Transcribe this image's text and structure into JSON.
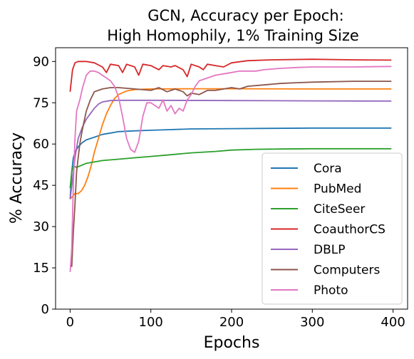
{
  "chart_data": {
    "type": "line",
    "title_line1": "GCN, Accuracy per Epoch:",
    "title_line2": "High Homophily, 1% Training Size",
    "xlabel": "Epochs",
    "ylabel": "% Accuracy",
    "xlim": [
      -18,
      418
    ],
    "ylim": [
      0,
      95
    ],
    "xticks": [
      0,
      100,
      200,
      300,
      400
    ],
    "yticks": [
      0,
      15,
      30,
      45,
      60,
      75,
      90
    ],
    "grid": false,
    "legend_position": "lower-right",
    "series": [
      {
        "name": "Cora",
        "color": "#1f77b4",
        "points": [
          [
            0,
            40
          ],
          [
            2,
            50
          ],
          [
            4,
            55
          ],
          [
            6,
            57
          ],
          [
            10,
            59
          ],
          [
            15,
            60.5
          ],
          [
            20,
            61.5
          ],
          [
            30,
            62.5
          ],
          [
            40,
            63.5
          ],
          [
            50,
            64
          ],
          [
            60,
            64.5
          ],
          [
            80,
            64.8
          ],
          [
            100,
            65
          ],
          [
            120,
            65.2
          ],
          [
            150,
            65.5
          ],
          [
            200,
            65.6
          ],
          [
            250,
            65.7
          ],
          [
            300,
            65.8
          ],
          [
            350,
            65.8
          ],
          [
            398,
            65.8
          ]
        ]
      },
      {
        "name": "PubMed",
        "color": "#ff7f0e",
        "points": [
          [
            0,
            40
          ],
          [
            3,
            41
          ],
          [
            6,
            42
          ],
          [
            10,
            42
          ],
          [
            14,
            43
          ],
          [
            18,
            45
          ],
          [
            22,
            48
          ],
          [
            26,
            52
          ],
          [
            30,
            57
          ],
          [
            35,
            62
          ],
          [
            40,
            67
          ],
          [
            45,
            71
          ],
          [
            50,
            74
          ],
          [
            55,
            76.5
          ],
          [
            60,
            78
          ],
          [
            70,
            79.3
          ],
          [
            80,
            79.8
          ],
          [
            100,
            80
          ],
          [
            150,
            80.1
          ],
          [
            200,
            80.1
          ],
          [
            300,
            80
          ],
          [
            398,
            80
          ]
        ]
      },
      {
        "name": "CiteSeer",
        "color": "#2ca02c",
        "points": [
          [
            0,
            44
          ],
          [
            2,
            50
          ],
          [
            4,
            52
          ],
          [
            8,
            51.5
          ],
          [
            12,
            52
          ],
          [
            20,
            53
          ],
          [
            40,
            54
          ],
          [
            60,
            54.5
          ],
          [
            80,
            55
          ],
          [
            100,
            55.5
          ],
          [
            120,
            56
          ],
          [
            150,
            56.8
          ],
          [
            180,
            57.3
          ],
          [
            200,
            57.8
          ],
          [
            230,
            58.1
          ],
          [
            260,
            58.2
          ],
          [
            300,
            58.3
          ],
          [
            350,
            58.3
          ],
          [
            398,
            58.3
          ]
        ]
      },
      {
        "name": "CoauthorCS",
        "color": "#d62728",
        "points": [
          [
            0,
            79
          ],
          [
            3,
            87
          ],
          [
            6,
            89.5
          ],
          [
            10,
            90
          ],
          [
            20,
            90
          ],
          [
            30,
            89.5
          ],
          [
            40,
            88
          ],
          [
            45,
            86
          ],
          [
            50,
            89
          ],
          [
            60,
            88.5
          ],
          [
            65,
            86
          ],
          [
            70,
            89
          ],
          [
            80,
            88
          ],
          [
            85,
            85
          ],
          [
            90,
            89
          ],
          [
            100,
            88.5
          ],
          [
            110,
            87
          ],
          [
            115,
            88.5
          ],
          [
            125,
            88
          ],
          [
            130,
            88.5
          ],
          [
            140,
            87
          ],
          [
            145,
            84.5
          ],
          [
            150,
            89
          ],
          [
            160,
            88
          ],
          [
            165,
            87
          ],
          [
            170,
            89
          ],
          [
            180,
            88.5
          ],
          [
            190,
            88
          ],
          [
            200,
            89.5
          ],
          [
            220,
            90.3
          ],
          [
            250,
            90.6
          ],
          [
            300,
            90.8
          ],
          [
            350,
            90.6
          ],
          [
            398,
            90.5
          ]
        ]
      },
      {
        "name": "DBLP",
        "color": "#9467bd",
        "points": [
          [
            0,
            40
          ],
          [
            3,
            47
          ],
          [
            6,
            55
          ],
          [
            10,
            62
          ],
          [
            15,
            66
          ],
          [
            20,
            69
          ],
          [
            25,
            71
          ],
          [
            30,
            73
          ],
          [
            35,
            74.5
          ],
          [
            40,
            75.3
          ],
          [
            50,
            75.8
          ],
          [
            60,
            75.9
          ],
          [
            100,
            75.9
          ],
          [
            200,
            75.8
          ],
          [
            300,
            75.7
          ],
          [
            398,
            75.6
          ]
        ]
      },
      {
        "name": "Computers",
        "color": "#8c564b",
        "points": [
          [
            0,
            16
          ],
          [
            2,
            15.5
          ],
          [
            4,
            28
          ],
          [
            6,
            38
          ],
          [
            8,
            50
          ],
          [
            10,
            55
          ],
          [
            12,
            60
          ],
          [
            15,
            65
          ],
          [
            20,
            72
          ],
          [
            25,
            76
          ],
          [
            30,
            79
          ],
          [
            40,
            80
          ],
          [
            50,
            80.5
          ],
          [
            60,
            80.5
          ],
          [
            80,
            80
          ],
          [
            100,
            79.5
          ],
          [
            110,
            80.5
          ],
          [
            120,
            79
          ],
          [
            130,
            80
          ],
          [
            140,
            79
          ],
          [
            145,
            77.5
          ],
          [
            150,
            78.5
          ],
          [
            160,
            78
          ],
          [
            170,
            79.5
          ],
          [
            180,
            79.5
          ],
          [
            200,
            80.5
          ],
          [
            210,
            80
          ],
          [
            220,
            81
          ],
          [
            240,
            81.5
          ],
          [
            260,
            82
          ],
          [
            280,
            82.3
          ],
          [
            300,
            82.5
          ],
          [
            350,
            82.8
          ],
          [
            398,
            82.8
          ]
        ]
      },
      {
        "name": "Photo",
        "color": "#e377c2",
        "points": [
          [
            0,
            13.5
          ],
          [
            2,
            22
          ],
          [
            4,
            45
          ],
          [
            6,
            62
          ],
          [
            8,
            72
          ],
          [
            12,
            76
          ],
          [
            15,
            80
          ],
          [
            20,
            85
          ],
          [
            25,
            86.5
          ],
          [
            30,
            86.5
          ],
          [
            35,
            86
          ],
          [
            40,
            85
          ],
          [
            45,
            84
          ],
          [
            50,
            83
          ],
          [
            55,
            81
          ],
          [
            60,
            77
          ],
          [
            65,
            70
          ],
          [
            70,
            62
          ],
          [
            75,
            58
          ],
          [
            80,
            57
          ],
          [
            85,
            61
          ],
          [
            90,
            70
          ],
          [
            95,
            75
          ],
          [
            100,
            75
          ],
          [
            105,
            74
          ],
          [
            110,
            73
          ],
          [
            115,
            76
          ],
          [
            120,
            72
          ],
          [
            125,
            74
          ],
          [
            130,
            71
          ],
          [
            135,
            73
          ],
          [
            140,
            72
          ],
          [
            145,
            76
          ],
          [
            150,
            78
          ],
          [
            155,
            81
          ],
          [
            160,
            83
          ],
          [
            170,
            84
          ],
          [
            180,
            85
          ],
          [
            190,
            85.5
          ],
          [
            200,
            86
          ],
          [
            210,
            86.5
          ],
          [
            220,
            86.5
          ],
          [
            230,
            86.5
          ],
          [
            240,
            87
          ],
          [
            260,
            87.5
          ],
          [
            280,
            87.8
          ],
          [
            300,
            88
          ],
          [
            350,
            88
          ],
          [
            398,
            88.2
          ]
        ]
      }
    ]
  }
}
